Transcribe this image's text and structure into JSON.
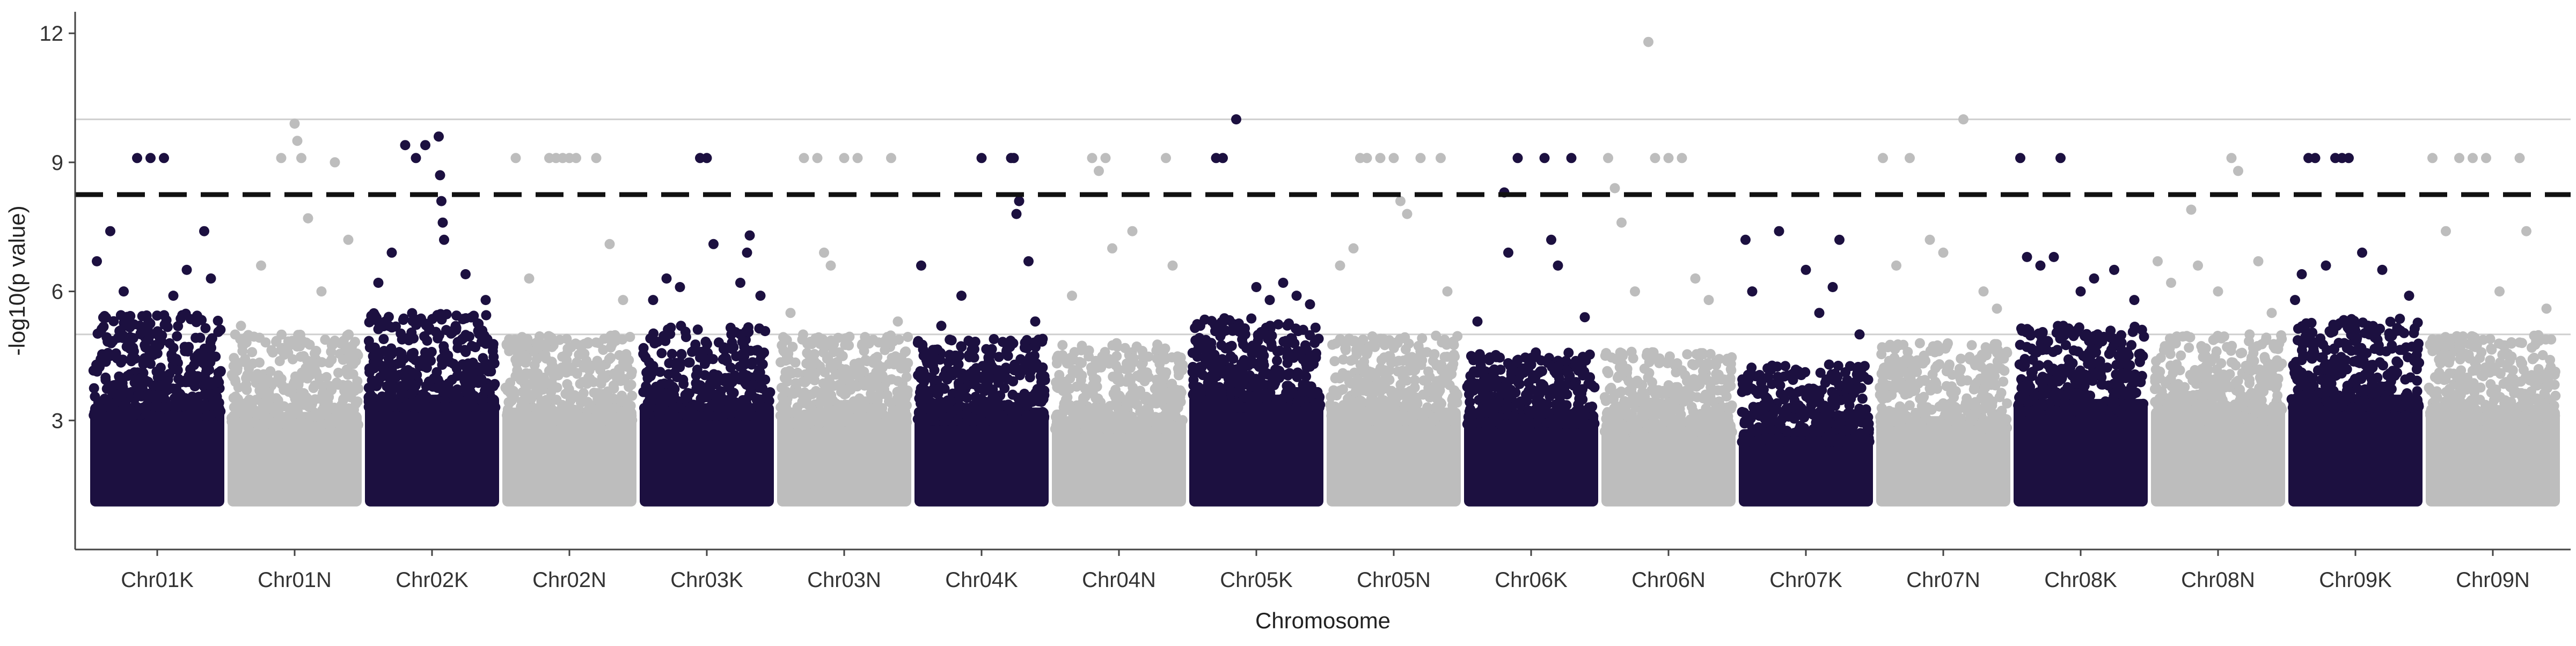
{
  "colors": {
    "dark": "#1c1040",
    "light": "#bdbdbd",
    "threshold": "#111111",
    "gridline": "#cfcfcf",
    "axis": "#444444"
  },
  "chart_data": {
    "type": "scatter",
    "subtype": "manhattan",
    "title": "",
    "xlabel": "Chromosome",
    "ylabel": "-log10(p value)",
    "ylim": [
      0,
      12.5
    ],
    "yticks": [
      3,
      6,
      9,
      12
    ],
    "reference_lines": [
      5,
      10
    ],
    "threshold_line": 8.25,
    "point_floor": 1,
    "grid": false,
    "categories": [
      "Chr01K",
      "Chr01N",
      "Chr02K",
      "Chr02N",
      "Chr03K",
      "Chr03N",
      "Chr04K",
      "Chr04N",
      "Chr05K",
      "Chr05N",
      "Chr06K",
      "Chr06N",
      "Chr07K",
      "Chr07N",
      "Chr08K",
      "Chr08N",
      "Chr09K",
      "Chr09N"
    ],
    "series": [
      {
        "category": "Chr01K",
        "color": "dark",
        "dense_top": 3.4,
        "cloud_max": 5.5,
        "peaks": [
          [
            0.05,
            6.7
          ],
          [
            0.15,
            7.4
          ],
          [
            0.25,
            6.0
          ],
          [
            0.35,
            9.1
          ],
          [
            0.45,
            9.1
          ],
          [
            0.55,
            9.1
          ],
          [
            0.62,
            5.9
          ],
          [
            0.72,
            6.5
          ],
          [
            0.85,
            7.4
          ],
          [
            0.9,
            6.3
          ]
        ]
      },
      {
        "category": "Chr01N",
        "color": "light",
        "dense_top": 3.2,
        "cloud_max": 5.0,
        "peaks": [
          [
            0.1,
            5.2
          ],
          [
            0.25,
            6.6
          ],
          [
            0.4,
            9.1
          ],
          [
            0.5,
            9.9
          ],
          [
            0.52,
            9.5
          ],
          [
            0.55,
            9.1
          ],
          [
            0.6,
            7.7
          ],
          [
            0.7,
            6.0
          ],
          [
            0.8,
            9.0
          ],
          [
            0.9,
            7.2
          ]
        ]
      },
      {
        "category": "Chr02K",
        "color": "dark",
        "dense_top": 3.6,
        "cloud_max": 5.5,
        "peaks": [
          [
            0.1,
            6.2
          ],
          [
            0.2,
            6.9
          ],
          [
            0.3,
            9.4
          ],
          [
            0.38,
            9.1
          ],
          [
            0.45,
            9.4
          ],
          [
            0.55,
            9.6
          ],
          [
            0.56,
            8.7
          ],
          [
            0.57,
            8.1
          ],
          [
            0.58,
            7.6
          ],
          [
            0.59,
            7.2
          ],
          [
            0.75,
            6.4
          ],
          [
            0.9,
            5.8
          ]
        ]
      },
      {
        "category": "Chr02N",
        "color": "light",
        "dense_top": 3.3,
        "cloud_max": 5.0,
        "peaks": [
          [
            0.1,
            9.1
          ],
          [
            0.2,
            6.3
          ],
          [
            0.35,
            9.1
          ],
          [
            0.4,
            9.1
          ],
          [
            0.45,
            9.1
          ],
          [
            0.5,
            9.1
          ],
          [
            0.55,
            9.1
          ],
          [
            0.7,
            9.1
          ],
          [
            0.8,
            7.1
          ],
          [
            0.9,
            5.8
          ]
        ]
      },
      {
        "category": "Chr03K",
        "color": "dark",
        "dense_top": 3.4,
        "cloud_max": 5.2,
        "peaks": [
          [
            0.1,
            5.8
          ],
          [
            0.2,
            6.3
          ],
          [
            0.3,
            6.1
          ],
          [
            0.45,
            9.1
          ],
          [
            0.5,
            9.1
          ],
          [
            0.55,
            7.1
          ],
          [
            0.75,
            6.2
          ],
          [
            0.8,
            6.9
          ],
          [
            0.82,
            7.3
          ],
          [
            0.9,
            5.9
          ]
        ]
      },
      {
        "category": "Chr03N",
        "color": "light",
        "dense_top": 3.2,
        "cloud_max": 5.0,
        "peaks": [
          [
            0.1,
            5.5
          ],
          [
            0.2,
            9.1
          ],
          [
            0.3,
            9.1
          ],
          [
            0.35,
            6.9
          ],
          [
            0.4,
            6.6
          ],
          [
            0.5,
            9.1
          ],
          [
            0.6,
            9.1
          ],
          [
            0.85,
            9.1
          ],
          [
            0.9,
            5.3
          ]
        ]
      },
      {
        "category": "Chr04K",
        "color": "dark",
        "dense_top": 3.3,
        "cloud_max": 4.9,
        "peaks": [
          [
            0.05,
            6.6
          ],
          [
            0.2,
            5.2
          ],
          [
            0.35,
            5.9
          ],
          [
            0.5,
            9.1
          ],
          [
            0.72,
            9.1
          ],
          [
            0.74,
            9.1
          ],
          [
            0.76,
            7.8
          ],
          [
            0.78,
            8.1
          ],
          [
            0.85,
            6.7
          ],
          [
            0.9,
            5.3
          ]
        ]
      },
      {
        "category": "Chr04N",
        "color": "light",
        "dense_top": 3.1,
        "cloud_max": 4.8,
        "peaks": [
          [
            0.15,
            5.9
          ],
          [
            0.3,
            9.1
          ],
          [
            0.35,
            8.8
          ],
          [
            0.4,
            9.1
          ],
          [
            0.45,
            7.0
          ],
          [
            0.6,
            7.4
          ],
          [
            0.85,
            9.1
          ],
          [
            0.9,
            6.6
          ]
        ]
      },
      {
        "category": "Chr05K",
        "color": "dark",
        "dense_top": 3.6,
        "cloud_max": 5.4,
        "peaks": [
          [
            0.2,
            9.1
          ],
          [
            0.25,
            9.1
          ],
          [
            0.35,
            10.0
          ],
          [
            0.5,
            6.1
          ],
          [
            0.6,
            5.8
          ],
          [
            0.7,
            6.2
          ],
          [
            0.8,
            5.9
          ],
          [
            0.9,
            5.7
          ]
        ]
      },
      {
        "category": "Chr05N",
        "color": "light",
        "dense_top": 3.3,
        "cloud_max": 5.0,
        "peaks": [
          [
            0.1,
            6.6
          ],
          [
            0.2,
            7.0
          ],
          [
            0.25,
            9.1
          ],
          [
            0.3,
            9.1
          ],
          [
            0.4,
            9.1
          ],
          [
            0.5,
            9.1
          ],
          [
            0.55,
            8.1
          ],
          [
            0.6,
            7.8
          ],
          [
            0.7,
            9.1
          ],
          [
            0.85,
            9.1
          ],
          [
            0.9,
            6.0
          ]
        ]
      },
      {
        "category": "Chr06K",
        "color": "dark",
        "dense_top": 3.2,
        "cloud_max": 4.6,
        "peaks": [
          [
            0.1,
            5.3
          ],
          [
            0.3,
            8.3
          ],
          [
            0.33,
            6.9
          ],
          [
            0.4,
            9.1
          ],
          [
            0.6,
            9.1
          ],
          [
            0.65,
            7.2
          ],
          [
            0.7,
            6.6
          ],
          [
            0.8,
            9.1
          ],
          [
            0.9,
            5.4
          ]
        ]
      },
      {
        "category": "Chr06N",
        "color": "light",
        "dense_top": 3.0,
        "cloud_max": 4.6,
        "peaks": [
          [
            0.05,
            9.1
          ],
          [
            0.1,
            8.4
          ],
          [
            0.15,
            7.6
          ],
          [
            0.25,
            6.0
          ],
          [
            0.35,
            11.8
          ],
          [
            0.4,
            9.1
          ],
          [
            0.5,
            9.1
          ],
          [
            0.6,
            9.1
          ],
          [
            0.7,
            6.3
          ],
          [
            0.8,
            5.8
          ]
        ]
      },
      {
        "category": "Chr07K",
        "color": "dark",
        "dense_top": 2.8,
        "cloud_max": 4.3,
        "peaks": [
          [
            0.05,
            7.2
          ],
          [
            0.1,
            6.0
          ],
          [
            0.3,
            7.4
          ],
          [
            0.5,
            6.5
          ],
          [
            0.6,
            5.5
          ],
          [
            0.7,
            6.1
          ],
          [
            0.75,
            7.2
          ],
          [
            0.9,
            5.0
          ]
        ]
      },
      {
        "category": "Chr07N",
        "color": "light",
        "dense_top": 3.1,
        "cloud_max": 4.8,
        "peaks": [
          [
            0.05,
            9.1
          ],
          [
            0.15,
            6.6
          ],
          [
            0.25,
            9.1
          ],
          [
            0.4,
            7.2
          ],
          [
            0.5,
            6.9
          ],
          [
            0.65,
            10.0
          ],
          [
            0.8,
            6.0
          ],
          [
            0.9,
            5.6
          ]
        ]
      },
      {
        "category": "Chr08K",
        "color": "dark",
        "dense_top": 3.5,
        "cloud_max": 5.2,
        "peaks": [
          [
            0.05,
            9.1
          ],
          [
            0.1,
            6.8
          ],
          [
            0.2,
            6.6
          ],
          [
            0.3,
            6.8
          ],
          [
            0.35,
            9.1
          ],
          [
            0.5,
            6.0
          ],
          [
            0.6,
            6.3
          ],
          [
            0.75,
            6.5
          ],
          [
            0.9,
            5.8
          ]
        ]
      },
      {
        "category": "Chr08N",
        "color": "light",
        "dense_top": 3.3,
        "cloud_max": 5.0,
        "peaks": [
          [
            0.05,
            6.7
          ],
          [
            0.15,
            6.2
          ],
          [
            0.3,
            7.9
          ],
          [
            0.35,
            6.6
          ],
          [
            0.5,
            6.0
          ],
          [
            0.6,
            9.1
          ],
          [
            0.65,
            8.8
          ],
          [
            0.8,
            6.7
          ],
          [
            0.9,
            5.5
          ]
        ]
      },
      {
        "category": "Chr09K",
        "color": "dark",
        "dense_top": 3.6,
        "cloud_max": 5.4,
        "peaks": [
          [
            0.05,
            5.8
          ],
          [
            0.1,
            6.4
          ],
          [
            0.15,
            9.1
          ],
          [
            0.2,
            9.1
          ],
          [
            0.28,
            6.6
          ],
          [
            0.35,
            9.1
          ],
          [
            0.4,
            9.1
          ],
          [
            0.45,
            9.1
          ],
          [
            0.55,
            6.9
          ],
          [
            0.7,
            6.5
          ],
          [
            0.9,
            5.9
          ]
        ]
      },
      {
        "category": "Chr09N",
        "color": "light",
        "dense_top": 3.3,
        "cloud_max": 5.0,
        "peaks": [
          [
            0.05,
            9.1
          ],
          [
            0.15,
            7.4
          ],
          [
            0.25,
            9.1
          ],
          [
            0.35,
            9.1
          ],
          [
            0.45,
            9.1
          ],
          [
            0.55,
            6.0
          ],
          [
            0.7,
            9.1
          ],
          [
            0.75,
            7.4
          ],
          [
            0.9,
            5.6
          ]
        ]
      }
    ]
  }
}
